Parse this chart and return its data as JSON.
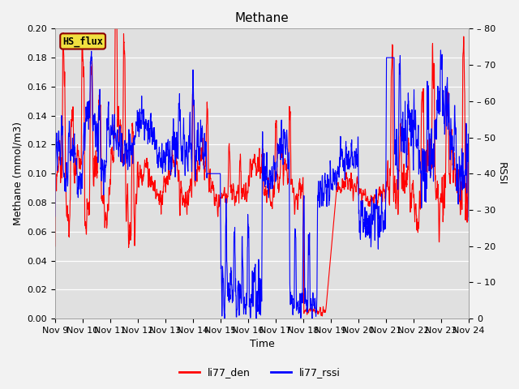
{
  "title": "Methane",
  "ylabel_left": "Methane (mmol/m3)",
  "ylabel_right": "RSSI",
  "xlabel": "Time",
  "ylim_left": [
    0,
    0.2
  ],
  "ylim_right": [
    0,
    80
  ],
  "yticks_left": [
    0.0,
    0.02,
    0.04,
    0.06,
    0.08,
    0.1,
    0.12,
    0.14,
    0.16,
    0.18,
    0.2
  ],
  "yticks_right": [
    0,
    10,
    20,
    30,
    40,
    50,
    60,
    70,
    80
  ],
  "xtick_labels": [
    "Nov 9",
    "Nov 10",
    "Nov 11",
    "Nov 12",
    "Nov 13",
    "Nov 14",
    "Nov 15",
    "Nov 16",
    "Nov 17",
    "Nov 18",
    "Nov 19",
    "Nov 20",
    "Nov 21",
    "Nov 22",
    "Nov 23",
    "Nov 24"
  ],
  "legend_labels": [
    "li77_den",
    "li77_rssi"
  ],
  "line_colors": [
    "red",
    "blue"
  ],
  "hs_flux_label": "HS_flux",
  "fig_facecolor": "#f2f2f2",
  "plot_bg_color": "#e0e0e0",
  "title_fontsize": 11,
  "label_fontsize": 9,
  "tick_fontsize": 8,
  "legend_fontsize": 9,
  "line_width": 0.8
}
